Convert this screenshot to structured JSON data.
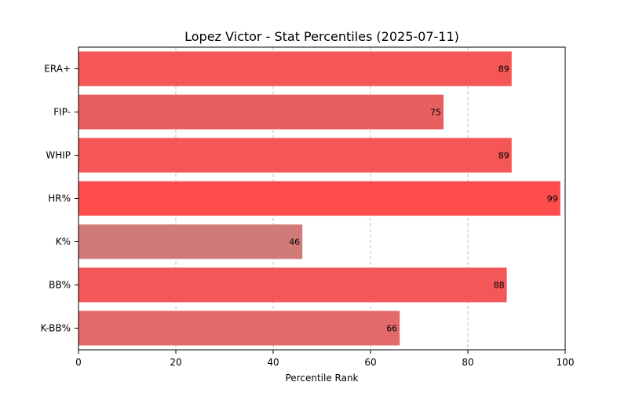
{
  "chart_data": {
    "type": "bar",
    "orientation": "horizontal",
    "title": "Lopez Victor - Stat Percentiles (2025-07-11)",
    "xlabel": "Percentile Rank",
    "ylabel": "",
    "xlim": [
      0,
      100
    ],
    "xticks": [
      0,
      20,
      40,
      60,
      80,
      100
    ],
    "grid": "x-dashed",
    "categories": [
      "ERA+",
      "FIP-",
      "WHIP",
      "HR%",
      "K%",
      "BB%",
      "K-BB%"
    ],
    "values": [
      89,
      75,
      89,
      99,
      46,
      88,
      66
    ],
    "value_labels": [
      "89",
      "75",
      "89",
      "99",
      "46",
      "88",
      "66"
    ],
    "colors": [
      "#f55656",
      "#e85f5f",
      "#f55656",
      "#ff4d4d",
      "#d17b78",
      "#f45757",
      "#e36a6a"
    ]
  }
}
